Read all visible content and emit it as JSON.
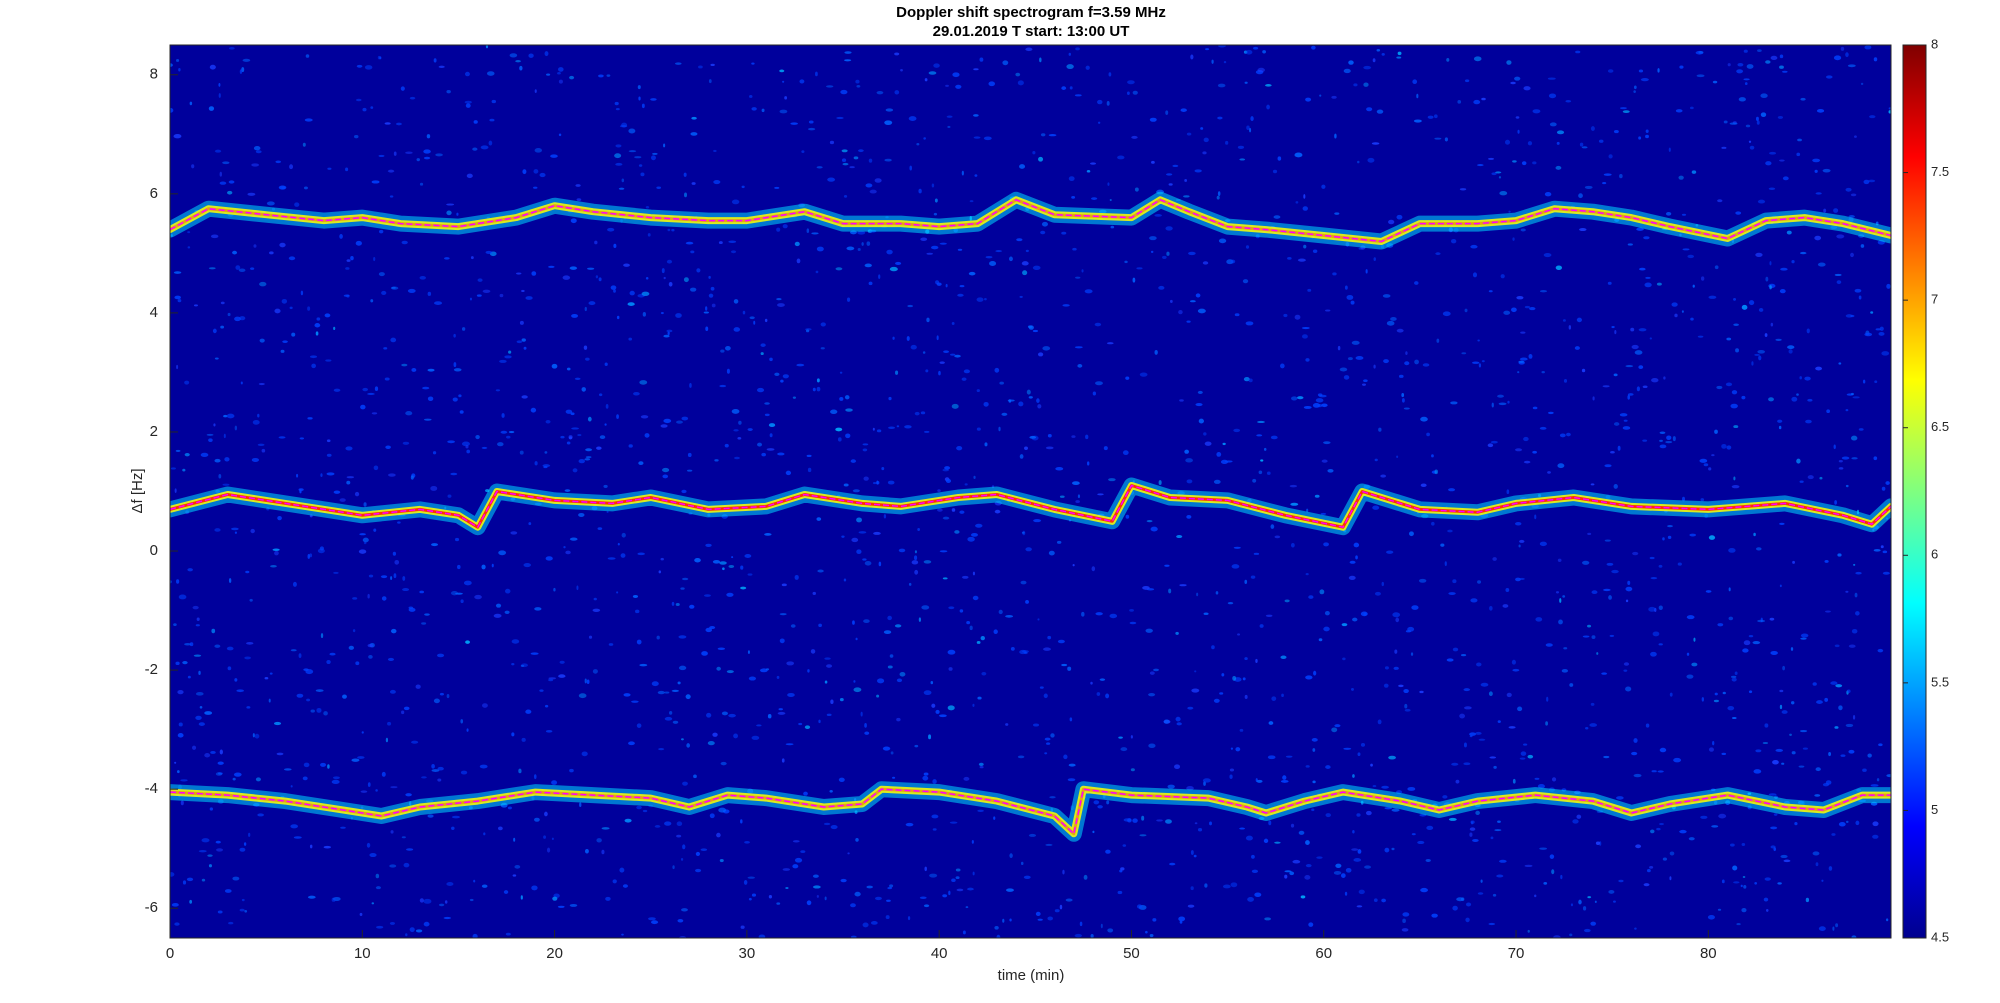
{
  "chart_data": {
    "type": "spectrogram",
    "title": "Doppler shift spectrogram f=3.59 MHz",
    "subtitle": "29.01.2019   T start: 13:00 UT",
    "xlabel": "time (min)",
    "ylabel": "Δf [Hz]",
    "xlim": [
      0,
      89.5
    ],
    "xticks": [
      0,
      10,
      20,
      30,
      40,
      50,
      60,
      70,
      80
    ],
    "ylim": [
      -6.5,
      8.5
    ],
    "yticks": [
      -6,
      -4,
      -2,
      0,
      2,
      4,
      6,
      8
    ],
    "clim": [
      4.5,
      8
    ],
    "cticks": [
      4.5,
      5,
      5.5,
      6,
      6.5,
      7,
      7.5,
      8
    ],
    "colormap": "jet",
    "series": [
      {
        "color": "#ff00ff",
        "x": [
          0,
          2,
          5,
          8,
          10,
          12,
          15,
          18,
          20,
          22,
          25,
          28,
          30,
          33,
          35,
          38,
          40,
          42,
          44,
          46,
          50,
          51.5,
          53,
          55,
          57,
          60,
          63,
          65,
          68,
          70,
          72,
          74,
          76,
          78,
          81,
          83,
          85,
          87,
          89.5
        ],
        "values": [
          5.4,
          5.75,
          5.65,
          5.55,
          5.6,
          5.5,
          5.45,
          5.6,
          5.8,
          5.7,
          5.6,
          5.55,
          5.55,
          5.7,
          5.5,
          5.5,
          5.45,
          5.5,
          5.9,
          5.65,
          5.6,
          5.9,
          5.7,
          5.45,
          5.4,
          5.3,
          5.2,
          5.5,
          5.5,
          5.55,
          5.75,
          5.7,
          5.6,
          5.45,
          5.25,
          5.55,
          5.6,
          5.5,
          5.3
        ]
      },
      {
        "color": "#ff00ff",
        "x": [
          0,
          3,
          6,
          10,
          13,
          15,
          16,
          17,
          20,
          23,
          25,
          28,
          31,
          33,
          36,
          38,
          41,
          43,
          46,
          49,
          50,
          52,
          55,
          58,
          61,
          62,
          65,
          68,
          70,
          73,
          76,
          80,
          84,
          87,
          88.5,
          89.5
        ],
        "values": [
          0.7,
          0.95,
          0.8,
          0.6,
          0.7,
          0.6,
          0.4,
          1.0,
          0.85,
          0.8,
          0.9,
          0.7,
          0.75,
          0.95,
          0.8,
          0.75,
          0.9,
          0.95,
          0.7,
          0.5,
          1.1,
          0.9,
          0.85,
          0.6,
          0.4,
          1.0,
          0.7,
          0.65,
          0.8,
          0.9,
          0.75,
          0.7,
          0.8,
          0.6,
          0.45,
          0.75
        ]
      },
      {
        "color": "#ff00ff",
        "x": [
          0,
          3,
          6,
          9,
          11,
          13,
          16,
          19,
          22,
          25,
          27,
          29,
          31,
          34,
          36,
          37,
          40,
          43,
          46,
          47,
          47.5,
          50,
          54,
          56,
          57,
          59,
          61,
          64,
          66,
          68,
          71,
          74,
          76,
          78,
          81,
          84,
          86,
          88,
          89.5
        ],
        "values": [
          -4.05,
          -4.1,
          -4.2,
          -4.35,
          -4.45,
          -4.3,
          -4.2,
          -4.05,
          -4.1,
          -4.15,
          -4.3,
          -4.1,
          -4.15,
          -4.3,
          -4.25,
          -4.0,
          -4.05,
          -4.2,
          -4.45,
          -4.75,
          -4.0,
          -4.1,
          -4.15,
          -4.3,
          -4.4,
          -4.2,
          -4.05,
          -4.2,
          -4.35,
          -4.2,
          -4.1,
          -4.2,
          -4.4,
          -4.25,
          -4.1,
          -4.3,
          -4.35,
          -4.1,
          -4.1
        ]
      }
    ]
  }
}
